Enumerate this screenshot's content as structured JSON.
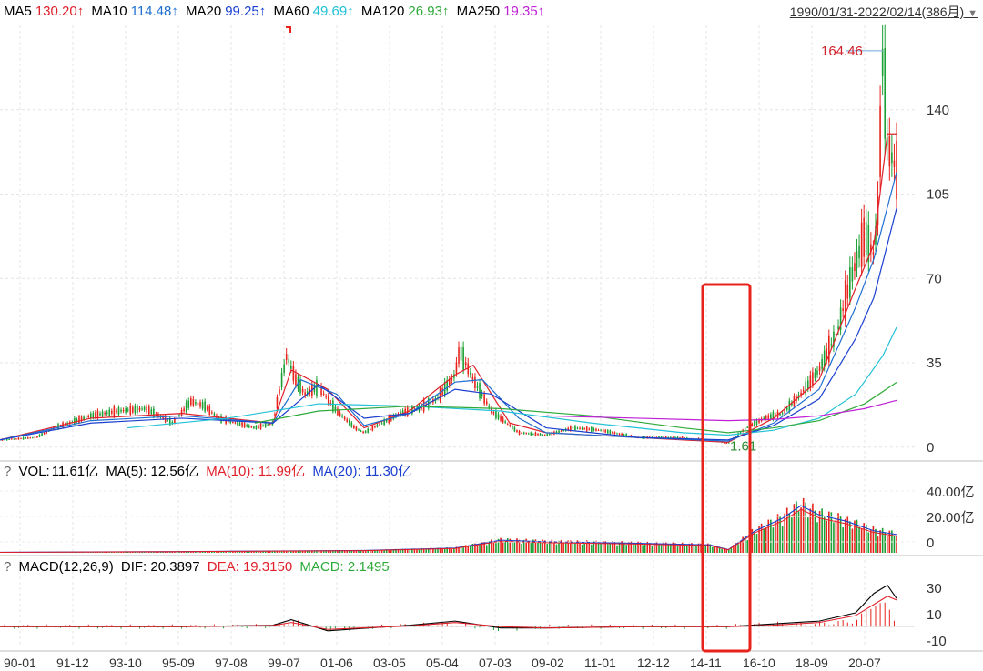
{
  "header": {
    "ma_items": [
      {
        "label": "MA5",
        "value": "130.20↑",
        "color": "#e0202a"
      },
      {
        "label": "MA10",
        "value": "114.48↑",
        "color": "#1f6fd1"
      },
      {
        "label": "MA20",
        "value": "99.25↑",
        "color": "#1a3fd0"
      },
      {
        "label": "MA60",
        "value": "49.69↑",
        "color": "#22c1d6"
      },
      {
        "label": "MA120",
        "value": "26.93↑",
        "color": "#2eaa3a"
      },
      {
        "label": "MA250",
        "value": "19.35↑",
        "color": "#c020d6"
      }
    ],
    "range": "1990/01/31-2022/02/14(386月)"
  },
  "volume_panel": {
    "q": "?",
    "vol_label": "VOL:",
    "vol_value": "11.61亿",
    "ma5": "MA(5): 12.56亿",
    "ma10": "MA(10): 11.99亿",
    "ma20": "MA(20): 11.30亿"
  },
  "macd_panel": {
    "q": "?",
    "title": "MACD(12,26,9)",
    "dif": "DIF: 20.3897",
    "dea": "DEA: 19.3150",
    "macd": "MACD: 2.1495"
  },
  "chart_data": {
    "type": "line",
    "title": "",
    "x_tick_labels": [
      "90-01",
      "91-12",
      "93-10",
      "95-09",
      "97-08",
      "99-07",
      "01-06",
      "03-05",
      "05-04",
      "07-03",
      "09-02",
      "11-01",
      "12-12",
      "14-11",
      "16-10",
      "18-09",
      "20-07"
    ],
    "y_ticks": [
      0,
      35,
      70,
      105,
      140
    ],
    "ylim": [
      -5,
      175
    ],
    "annotations": {
      "max": "164.46",
      "min": "1.61"
    },
    "price_x": [
      0,
      0.04,
      0.06,
      0.1,
      0.13,
      0.16,
      0.19,
      0.21,
      0.225,
      0.24,
      0.26,
      0.28,
      0.3,
      0.315,
      0.325,
      0.335,
      0.35,
      0.37,
      0.39,
      0.4,
      0.42,
      0.44,
      0.46,
      0.48,
      0.5,
      0.505,
      0.52,
      0.54,
      0.57,
      0.6,
      0.63,
      0.66,
      0.7,
      0.74,
      0.78,
      0.8,
      0.82,
      0.84,
      0.86,
      0.88,
      0.9,
      0.92,
      0.935,
      0.95,
      0.96,
      0.965,
      0.97,
      0.975,
      0.985
    ],
    "price_y": [
      3,
      4,
      8,
      13,
      15,
      16,
      10,
      19,
      17,
      12,
      10,
      8,
      10,
      38,
      28,
      22,
      25,
      15,
      8,
      6,
      10,
      14,
      16,
      20,
      30,
      40,
      28,
      15,
      6,
      5,
      8,
      7,
      4,
      4,
      3,
      1.6,
      8,
      12,
      14,
      22,
      32,
      48,
      70,
      88,
      80,
      100,
      164,
      125,
      115
    ],
    "ma_series": [
      {
        "name": "MA5",
        "color": "#e0202a",
        "x": [
          0,
          0.1,
          0.2,
          0.3,
          0.32,
          0.36,
          0.4,
          0.45,
          0.5,
          0.52,
          0.56,
          0.6,
          0.7,
          0.8,
          0.85,
          0.9,
          0.94,
          0.96,
          0.975,
          0.985
        ],
        "y": [
          3,
          12,
          14,
          10,
          32,
          24,
          8,
          15,
          30,
          34,
          10,
          6,
          4,
          2,
          12,
          28,
          66,
          84,
          130,
          130
        ]
      },
      {
        "name": "MA10",
        "color": "#1f6fd1",
        "x": [
          0,
          0.1,
          0.2,
          0.3,
          0.33,
          0.37,
          0.4,
          0.45,
          0.5,
          0.53,
          0.57,
          0.6,
          0.7,
          0.8,
          0.85,
          0.9,
          0.94,
          0.96,
          0.985
        ],
        "y": [
          3,
          11,
          13,
          10,
          28,
          22,
          9,
          14,
          27,
          28,
          12,
          6,
          4,
          2.5,
          10,
          24,
          58,
          78,
          114
        ]
      },
      {
        "name": "MA20",
        "color": "#1a3fd0",
        "x": [
          0,
          0.1,
          0.2,
          0.3,
          0.35,
          0.4,
          0.45,
          0.5,
          0.54,
          0.6,
          0.7,
          0.8,
          0.85,
          0.9,
          0.94,
          0.96,
          0.985
        ],
        "y": [
          3,
          10,
          12,
          10,
          26,
          12,
          14,
          24,
          22,
          8,
          4,
          3,
          9,
          20,
          45,
          62,
          99
        ]
      },
      {
        "name": "MA60",
        "color": "#22c1d6",
        "x": [
          0.14,
          0.25,
          0.35,
          0.45,
          0.55,
          0.65,
          0.75,
          0.8,
          0.85,
          0.9,
          0.94,
          0.97,
          0.985
        ],
        "y": [
          8,
          12,
          18,
          17,
          15,
          10,
          6,
          5,
          7,
          12,
          22,
          38,
          49.7
        ]
      },
      {
        "name": "MA120",
        "color": "#2eaa3a",
        "x": [
          0.28,
          0.35,
          0.45,
          0.55,
          0.65,
          0.75,
          0.8,
          0.85,
          0.9,
          0.95,
          0.985
        ],
        "y": [
          10,
          15,
          17,
          16,
          13,
          8,
          6,
          8,
          11,
          18,
          26.9
        ]
      },
      {
        "name": "MA250",
        "color": "#c020d6",
        "x": [
          0.6,
          0.7,
          0.8,
          0.85,
          0.9,
          0.95,
          0.985
        ],
        "y": [
          13,
          12,
          11,
          11.5,
          13,
          16,
          19.4
        ]
      }
    ],
    "volume": {
      "ylim": [
        0,
        45
      ],
      "y_ticks": [
        "40.00亿",
        "20.00亿",
        "0"
      ],
      "x": [
        0,
        0.2,
        0.4,
        0.5,
        0.55,
        0.6,
        0.7,
        0.78,
        0.8,
        0.83,
        0.86,
        0.88,
        0.9,
        0.93,
        0.96,
        0.985
      ],
      "y": [
        0.3,
        0.8,
        1.5,
        3,
        8,
        7,
        6,
        5,
        2,
        14,
        22,
        30,
        24,
        20,
        14,
        11.6
      ]
    },
    "macd": {
      "ylim": [
        -15,
        35
      ],
      "y_ticks": [
        "30",
        "10",
        "-10"
      ],
      "x": [
        0,
        0.2,
        0.3,
        0.32,
        0.36,
        0.45,
        0.5,
        0.55,
        0.6,
        0.7,
        0.8,
        0.85,
        0.9,
        0.94,
        0.96,
        0.975,
        0.985
      ],
      "dif": [
        0,
        0,
        1,
        5,
        -3,
        1,
        4,
        -1,
        -1,
        0,
        0,
        2,
        4,
        10,
        24,
        30,
        20.4
      ],
      "dea": [
        0,
        0,
        0.8,
        3,
        -2,
        0.5,
        3,
        0,
        -1,
        0,
        0,
        1,
        3,
        8,
        16,
        22,
        19.3
      ]
    },
    "highlight_box": {
      "x": [
        0.72,
        0.763
      ],
      "color": "#e8231b"
    }
  }
}
